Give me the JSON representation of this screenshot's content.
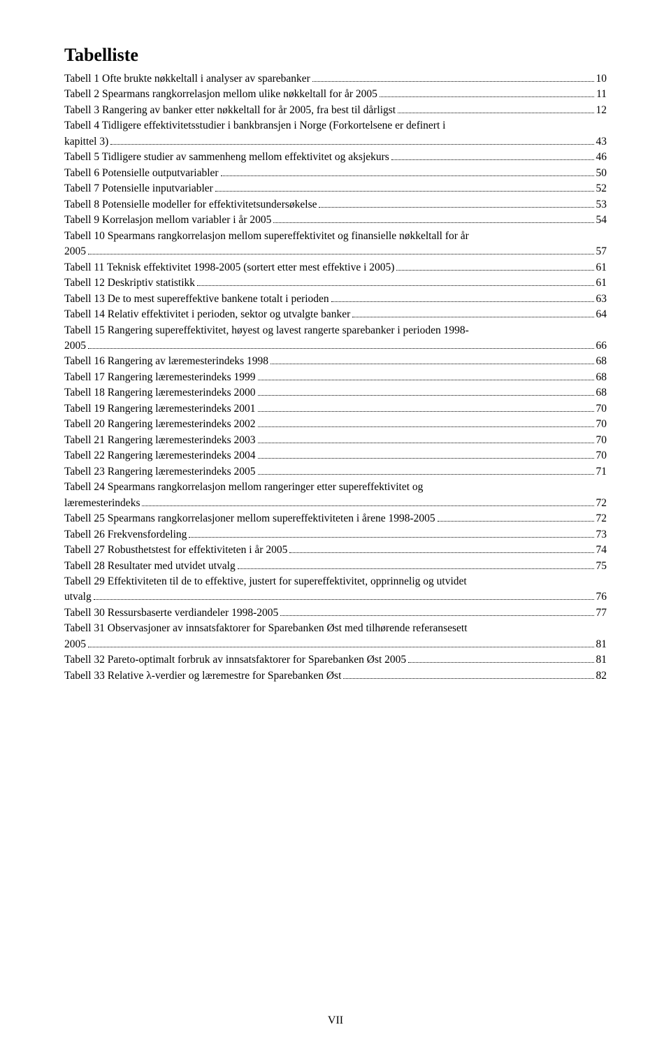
{
  "title": "Tabelliste",
  "page_number": "VII",
  "entries": [
    {
      "label": "Tabell 1 Ofte brukte nøkkeltall i analyser av sparebanker",
      "page": "10"
    },
    {
      "label": "Tabell 2 Spearmans rangkorrelasjon mellom ulike nøkkeltall for år 2005",
      "page": "11"
    },
    {
      "label": "Tabell 3 Rangering av banker etter nøkkeltall for år 2005, fra best til dårligst",
      "page": "12"
    },
    {
      "label_lines": [
        "Tabell 4 Tidligere effektivitetsstudier i bankbransjen i Norge (Forkortelsene er definert i",
        "kapittel 3)"
      ],
      "page": "43"
    },
    {
      "label": "Tabell 5 Tidligere studier av sammenheng mellom effektivitet og aksjekurs",
      "page": "46"
    },
    {
      "label": "Tabell 6 Potensielle outputvariabler",
      "page": "50"
    },
    {
      "label": "Tabell 7 Potensielle inputvariabler",
      "page": "52"
    },
    {
      "label": "Tabell 8 Potensielle modeller for effektivitetsundersøkelse",
      "page": "53"
    },
    {
      "label": "Tabell 9 Korrelasjon mellom variabler i år 2005",
      "page": "54"
    },
    {
      "label_lines": [
        "Tabell 10 Spearmans rangkorrelasjon mellom supereffektivitet og finansielle nøkkeltall for år",
        "2005"
      ],
      "page": "57"
    },
    {
      "label": "Tabell 11 Teknisk effektivitet 1998-2005 (sortert etter mest effektive i 2005)",
      "page": "61"
    },
    {
      "label": "Tabell 12 Deskriptiv statistikk",
      "page": "61"
    },
    {
      "label": "Tabell 13 De to mest supereffektive bankene totalt i perioden",
      "page": "63"
    },
    {
      "label": "Tabell 14 Relativ effektivitet i perioden, sektor og utvalgte banker",
      "page": "64"
    },
    {
      "label_lines": [
        "Tabell 15 Rangering supereffektivitet, høyest og lavest rangerte sparebanker i perioden 1998-",
        "2005"
      ],
      "page": "66"
    },
    {
      "label": "Tabell 16 Rangering av læremesterindeks 1998",
      "page": "68"
    },
    {
      "label": "Tabell 17 Rangering læremesterindeks 1999",
      "page": "68"
    },
    {
      "label": "Tabell 18 Rangering læremesterindeks 2000",
      "page": "68"
    },
    {
      "label": "Tabell 19 Rangering læremesterindeks 2001",
      "page": "70"
    },
    {
      "label": "Tabell 20 Rangering læremesterindeks 2002",
      "page": "70"
    },
    {
      "label": "Tabell 21 Rangering læremesterindeks 2003",
      "page": "70"
    },
    {
      "label": "Tabell 22 Rangering læremesterindeks 2004",
      "page": "70"
    },
    {
      "label": "Tabell 23 Rangering læremesterindeks 2005",
      "page": "71"
    },
    {
      "label_lines": [
        "Tabell 24 Spearmans rangkorrelasjon mellom rangeringer etter supereffektivitet og",
        "læremesterindeks"
      ],
      "page": "72"
    },
    {
      "label": "Tabell 25 Spearmans rangkorrelasjoner mellom supereffektiviteten i årene 1998-2005",
      "page": "72"
    },
    {
      "label": "Tabell 26 Frekvensfordeling",
      "page": "73"
    },
    {
      "label": "Tabell 27 Robusthetstest for effektiviteten i år 2005",
      "page": "74"
    },
    {
      "label": "Tabell 28 Resultater med utvidet utvalg",
      "page": "75"
    },
    {
      "label_lines": [
        "Tabell 29 Effektiviteten til de to effektive, justert for supereffektivitet, opprinnelig og utvidet",
        "utvalg"
      ],
      "page": "76"
    },
    {
      "label": "Tabell 30 Ressursbaserte verdiandeler 1998-2005",
      "page": "77"
    },
    {
      "label_lines": [
        "Tabell 31 Observasjoner av innsatsfaktorer for Sparebanken Øst med tilhørende referansesett",
        "2005"
      ],
      "page": "81"
    },
    {
      "label": "Tabell 32 Pareto-optimalt forbruk av innsatsfaktorer for Sparebanken Øst 2005",
      "page": "81"
    },
    {
      "label": "Tabell 33 Relative λ-verdier og læremestre for Sparebanken Øst",
      "page": "82"
    }
  ]
}
